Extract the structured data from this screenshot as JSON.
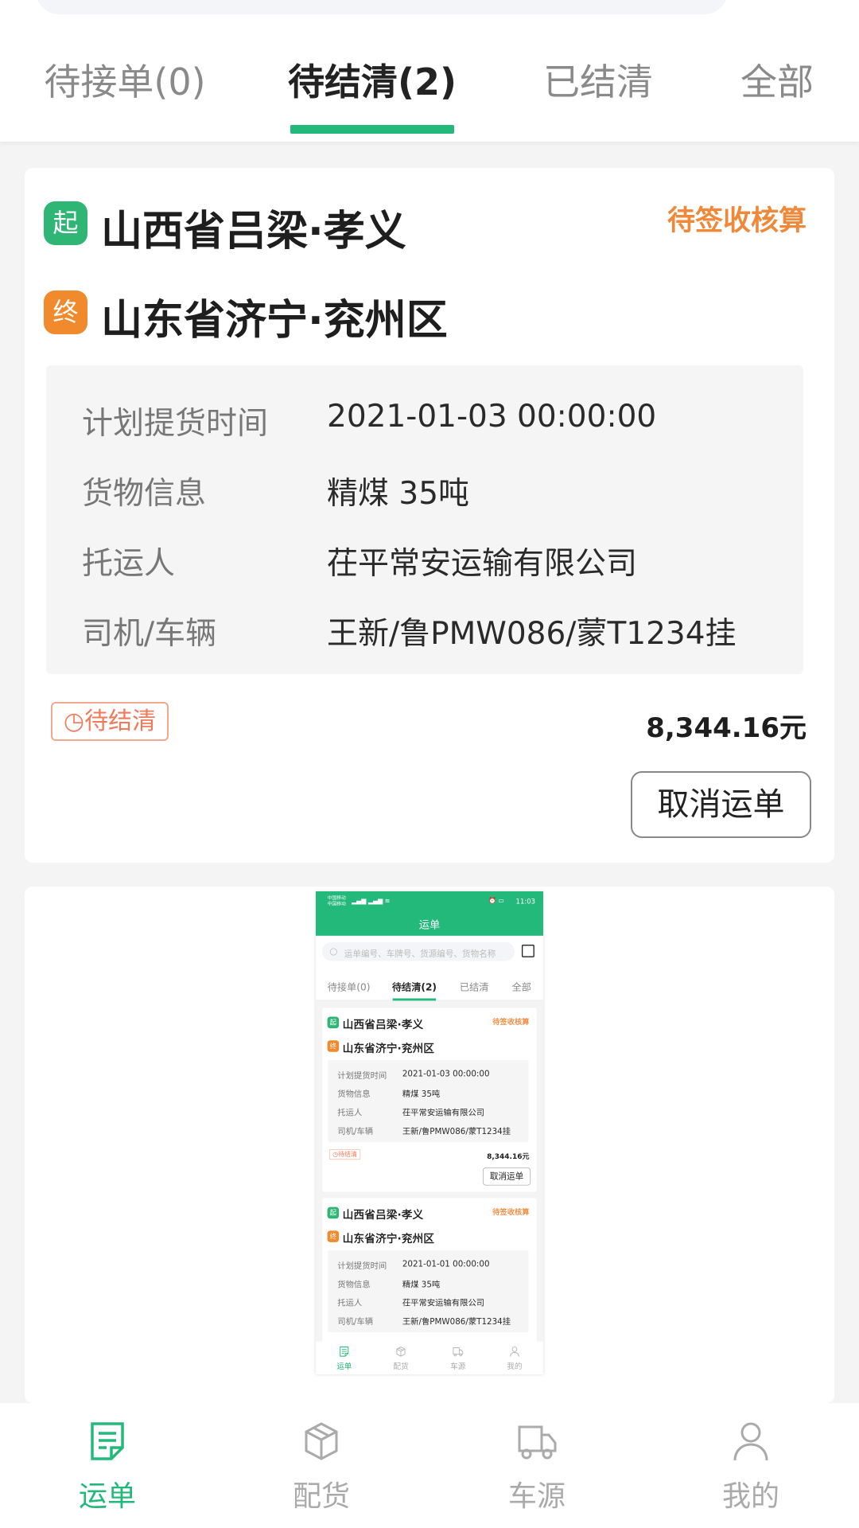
{
  "tabs": [
    {
      "label": "待接单(0)"
    },
    {
      "label": "待结清(2)"
    },
    {
      "label": "已结清"
    },
    {
      "label": "全部"
    }
  ],
  "active_tab": 1,
  "orders": [
    {
      "origin_badge": "起",
      "origin": "山西省吕梁·孝义",
      "dest_badge": "终",
      "destination": "山东省济宁·兖州区",
      "status": "待签收核算",
      "rows": [
        {
          "label": "计划提货时间",
          "value": "2021-01-03 00:00:00"
        },
        {
          "label": "货物信息",
          "value": "精煤 35吨"
        },
        {
          "label": "托运人",
          "value": "茌平常安运输有限公司"
        },
        {
          "label": "司机/车辆",
          "value": "王新/鲁PMW086/蒙T1234挂"
        }
      ],
      "badge": "待结清",
      "amount": "8,344.16元",
      "cancel_label": "取消运单"
    },
    {
      "origin_badge": "起",
      "origin": "山西省吕梁·孝义",
      "dest_badge": "终",
      "destination": "山东省济宁·兖州区",
      "status": "待签收核算",
      "rows": [
        {
          "label": "计划提货时间",
          "value": "2021-01-01 00:00:00"
        },
        {
          "label": "货物信息",
          "value": "精煤 35吨"
        },
        {
          "label": "托运人",
          "value": "茌平常安运输有限公司"
        },
        {
          "label": "司机/车辆",
          "value": "王新/鲁PMW086/蒙T1234挂"
        }
      ]
    }
  ],
  "nav": [
    {
      "label": "运单",
      "icon": "document-icon"
    },
    {
      "label": "配货",
      "icon": "box-icon"
    },
    {
      "label": "车源",
      "icon": "truck-icon"
    },
    {
      "label": "我的",
      "icon": "user-icon"
    }
  ],
  "inset": {
    "carrier1": "中国移动",
    "carrier2": "中国移动",
    "time": "11:03",
    "title": "运单",
    "search_placeholder": "运单编号、车牌号、货源编号、货物名称"
  },
  "colors": {
    "accent": "#22b97a",
    "orange": "#f0883a",
    "start": "#2fb574",
    "end": "#f08a2c"
  }
}
